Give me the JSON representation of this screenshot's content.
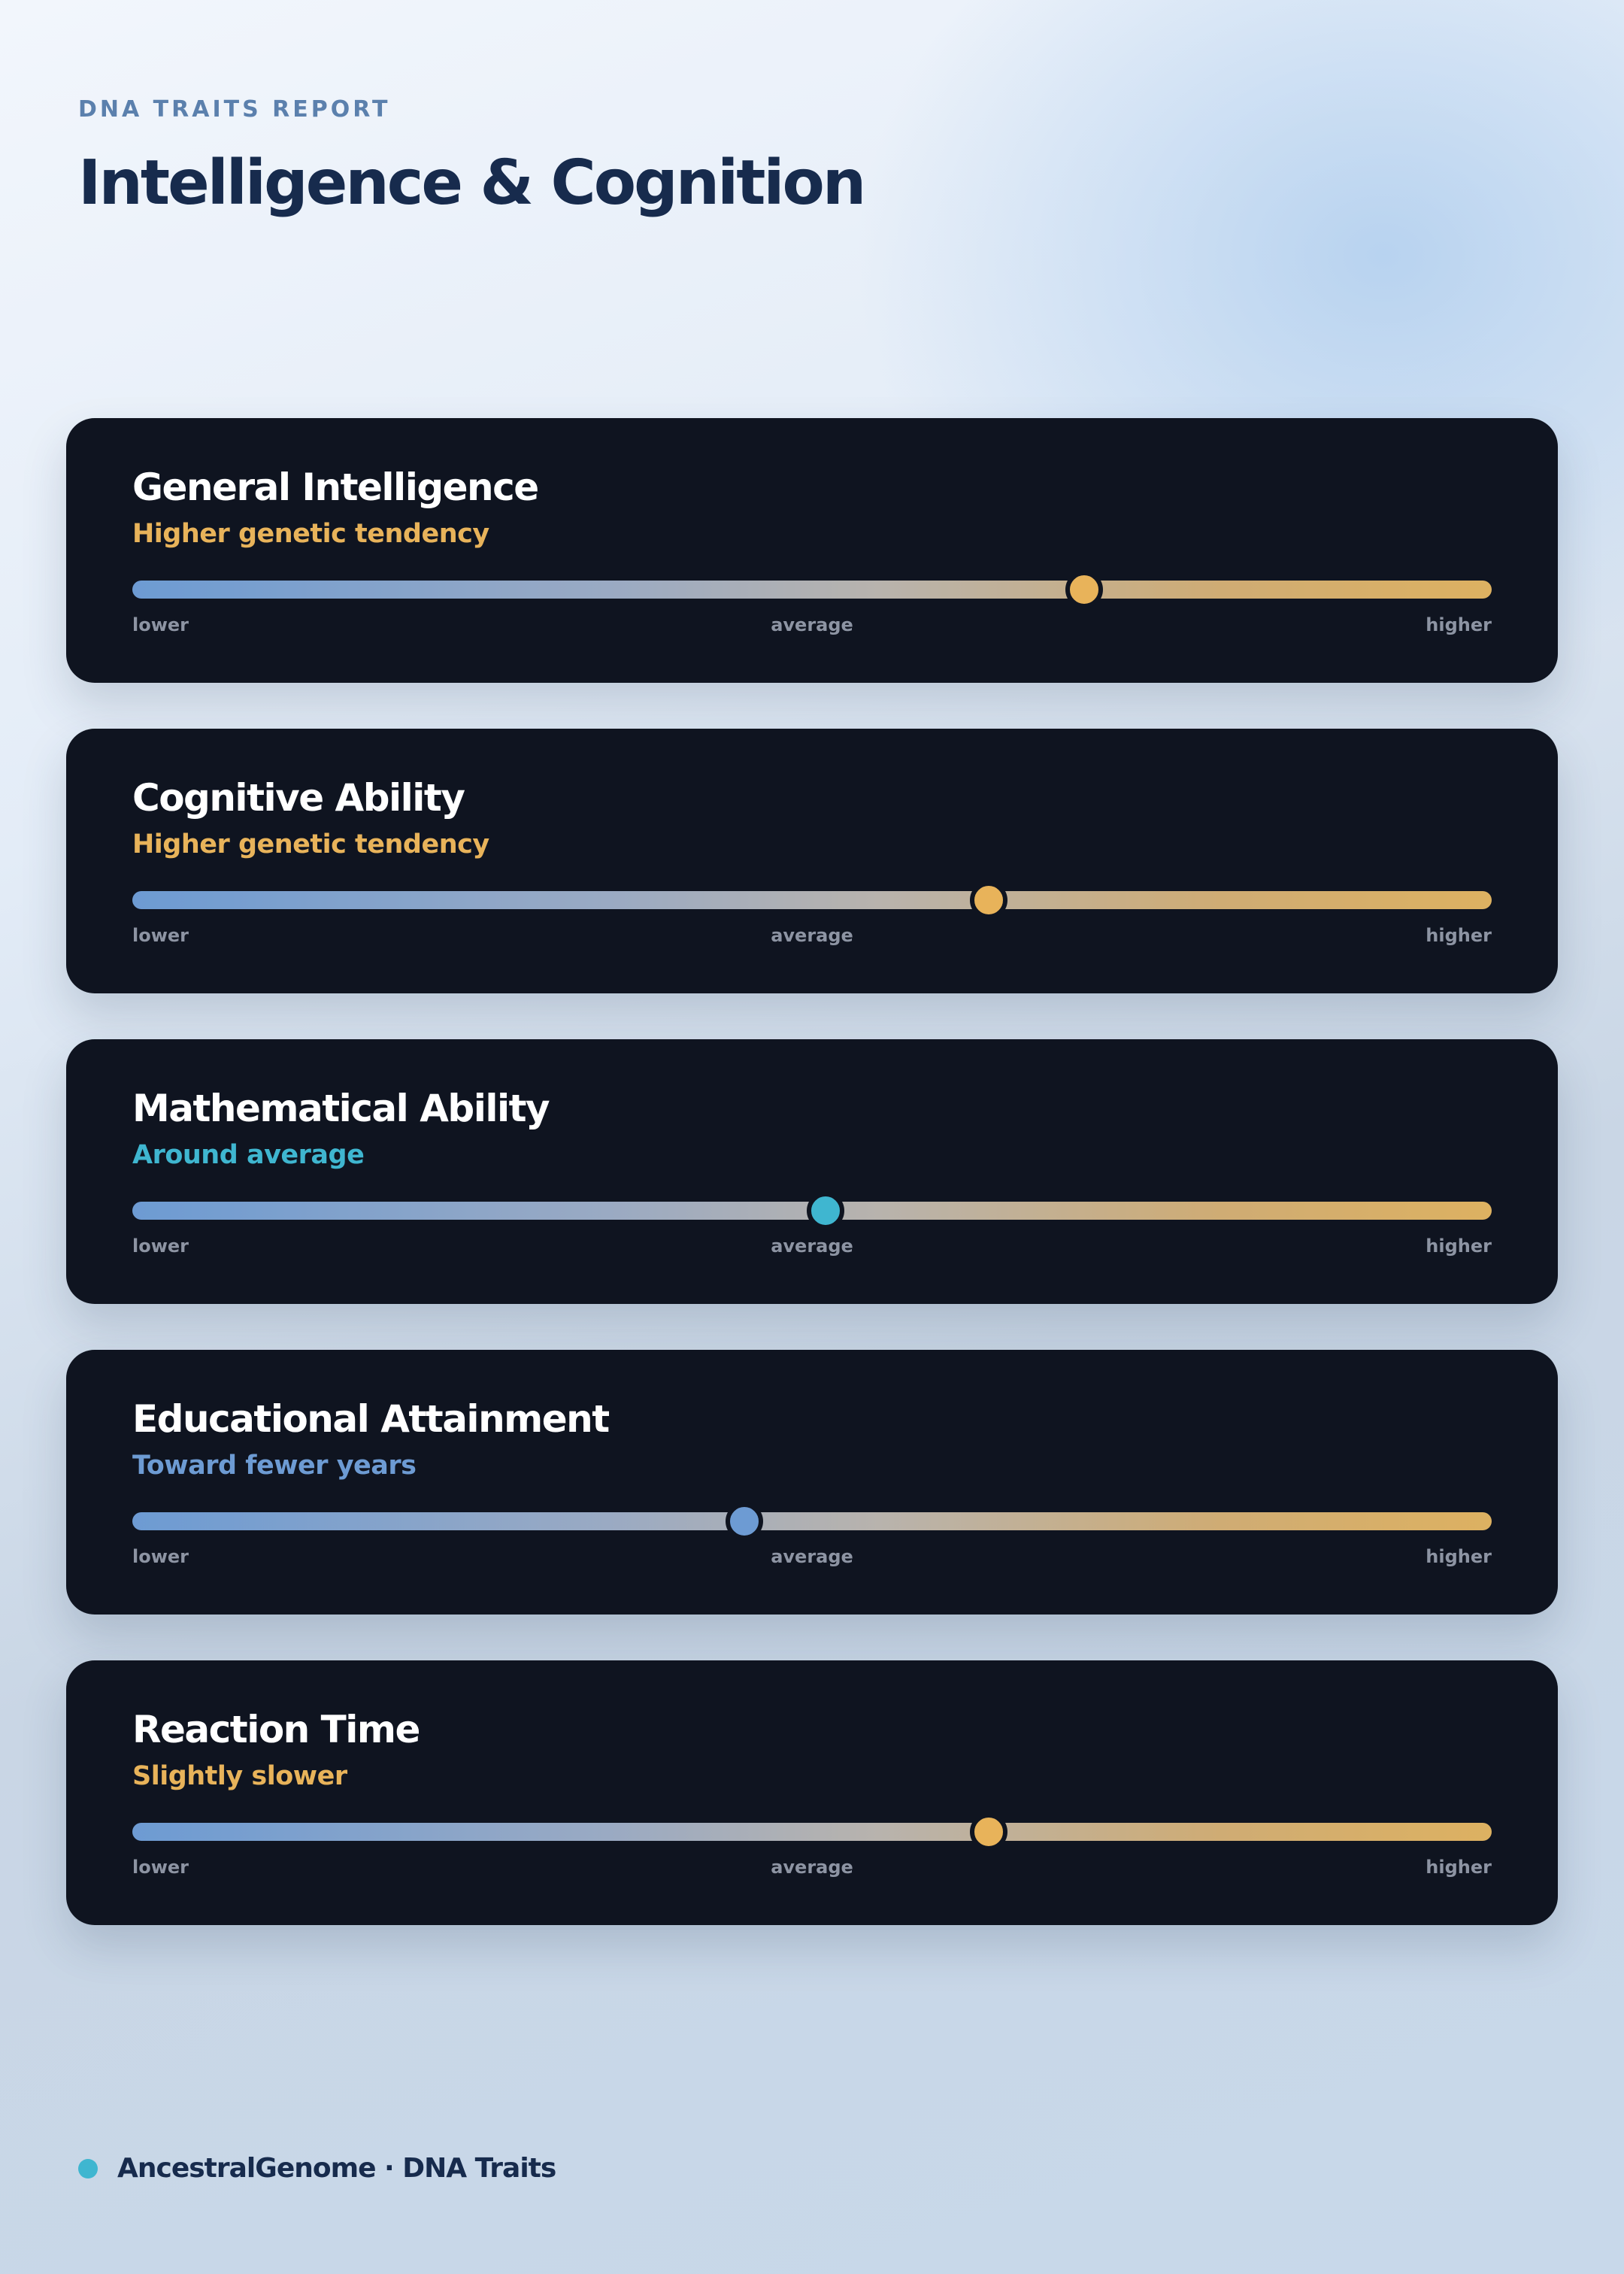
{
  "header": {
    "eyebrow": "DNA TRAITS REPORT",
    "title": "Intelligence & Cognition"
  },
  "scale_labels": {
    "lower": "lower",
    "average": "average",
    "higher": "higher"
  },
  "traits": [
    {
      "name": "General Intelligence",
      "result": "Higher genetic tendency",
      "result_color": "#e8b35a",
      "thumb_color": "#e8b35a",
      "position": 0.7
    },
    {
      "name": "Cognitive Ability",
      "result": "Higher genetic tendency",
      "result_color": "#e8b35a",
      "thumb_color": "#e8b35a",
      "position": 0.63
    },
    {
      "name": "Mathematical Ability",
      "result": "Around average",
      "result_color": "#3fb6d0",
      "thumb_color": "#3fb6d0",
      "position": 0.51
    },
    {
      "name": "Educational Attainment",
      "result": "Toward fewer years",
      "result_color": "#6d9bd3",
      "thumb_color": "#6d9bd3",
      "position": 0.45
    },
    {
      "name": "Reaction Time",
      "result": "Slightly slower",
      "result_color": "#e8b35a",
      "thumb_color": "#e8b35a",
      "position": 0.63
    }
  ],
  "footer": {
    "text": "AncestralGenome · DNA Traits",
    "dot_color": "#3fb6d0",
    "dot_icon": "brand-dot-icon"
  }
}
